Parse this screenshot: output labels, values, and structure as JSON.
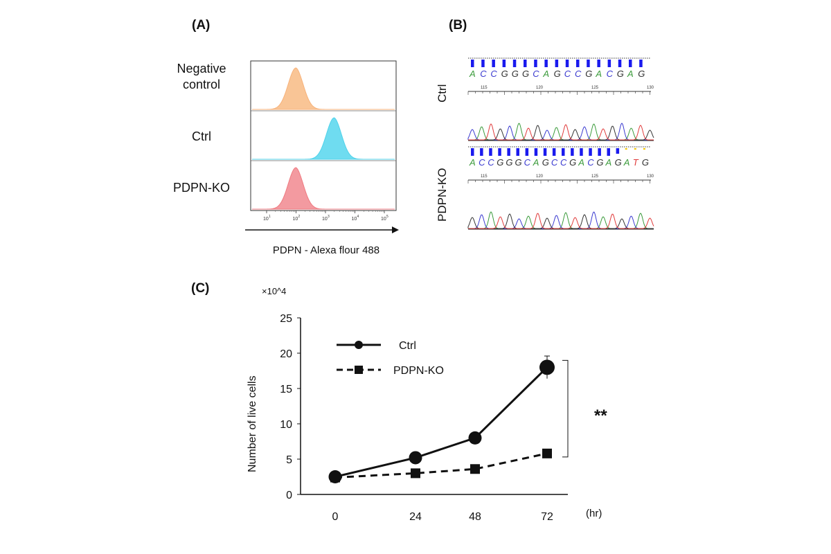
{
  "panels": {
    "a": "(A)",
    "b": "(B)",
    "c": "(C)"
  },
  "flow": {
    "rows": [
      {
        "label_lines": [
          "Negative",
          "control"
        ],
        "color": "#f7b27a",
        "fill": "#f9c596",
        "peak_decade": 2.0
      },
      {
        "label_lines": [
          "Ctrl"
        ],
        "color": "#4fd2ea",
        "fill": "#6fdcf0",
        "peak_decade": 3.3
      },
      {
        "label_lines": [
          "PDPN-KO"
        ],
        "color": "#ef7a80",
        "fill": "#f39aa0",
        "peak_decade": 2.0
      }
    ],
    "ticks": [
      "10",
      "10",
      "10",
      "10",
      "10"
    ],
    "tick_exponents": [
      "1",
      "2",
      "3",
      "4",
      "5"
    ],
    "xlabel": "PDPN - Alexa flour 488"
  },
  "sequencing": {
    "ctrl": {
      "label": "Ctrl",
      "bases": [
        "A",
        "C",
        "C",
        "G",
        "G",
        "G",
        "C",
        "A",
        "G",
        "C",
        "C",
        "G",
        "A",
        "C",
        "G",
        "A",
        "G"
      ],
      "positions": [
        "115",
        "120",
        "125",
        "130"
      ]
    },
    "ko": {
      "label": "PDPN-KO",
      "bases": [
        "A",
        "C",
        "C",
        "G",
        "G",
        "G",
        "C",
        "A",
        "G",
        "C",
        "C",
        "G",
        "A",
        "C",
        "G",
        "A",
        "G",
        "A",
        "T",
        "G"
      ],
      "positions": [
        "115",
        "120",
        "125",
        "130"
      ]
    },
    "base_colors": {
      "A": "#3a9a3a",
      "C": "#3a3ad0",
      "G": "#333333",
      "T": "#e03a3a"
    }
  },
  "chart_data": {
    "type": "line",
    "x": [
      0,
      24,
      48,
      72
    ],
    "categories": [
      "0",
      "24",
      "48",
      "72"
    ],
    "series": [
      {
        "name": "Ctrl",
        "values": [
          2.5,
          5.2,
          8.0,
          18.0
        ],
        "errors": [
          0.3,
          0.3,
          0.3,
          1.6
        ],
        "marker": "circle",
        "dash": "solid"
      },
      {
        "name": "PDPN-KO",
        "values": [
          2.4,
          3.0,
          3.6,
          5.8
        ],
        "errors": [
          0.2,
          0.2,
          0.3,
          0.5
        ],
        "marker": "square",
        "dash": "dashed"
      }
    ],
    "ylim": [
      0,
      25
    ],
    "yticks": [
      "0",
      "5",
      "10",
      "15",
      "20",
      "25"
    ],
    "ylabel": "Number of live cells",
    "y_multiplier": "×10^4",
    "xunit": "(hr)",
    "significance": "**",
    "legend": "top-left"
  }
}
